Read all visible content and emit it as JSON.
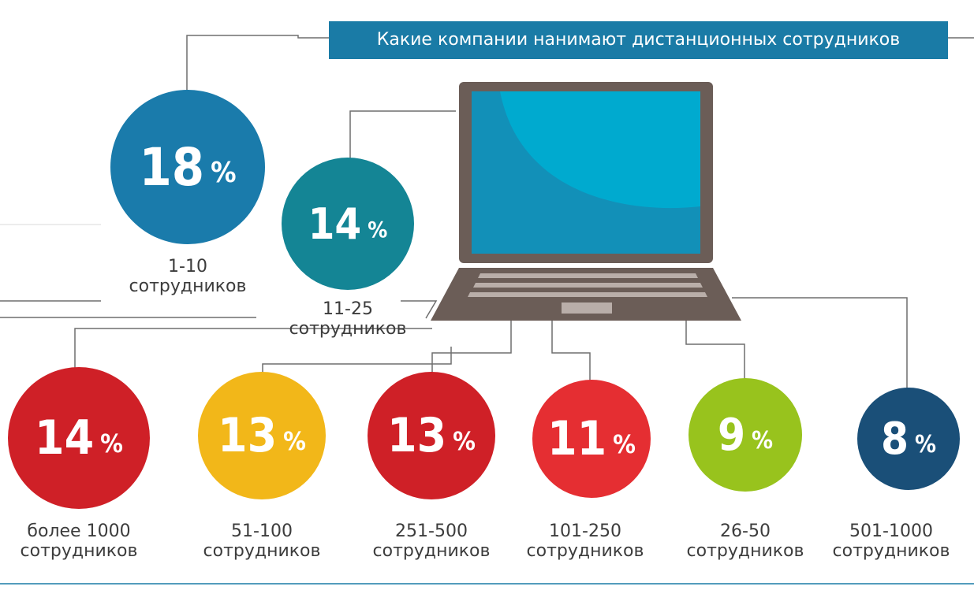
{
  "colors": {
    "title_bg": "#1a7ba6",
    "laptop_body": "#6b5d57",
    "screen_dark": "#1290b8",
    "screen_light": "#00aacf",
    "leader_lines": "#6f6f6f",
    "blue": "#1a7bab",
    "teal": "#148595",
    "red": "#cf2027",
    "yellow": "#f2b719",
    "red_light": "#e52e32",
    "green": "#98c31d",
    "navy": "#1a4f78"
  },
  "chart_data": {
    "type": "bubble",
    "title": "Какие компании нанимают дистанционных сотрудников",
    "unit": "%",
    "categories": [
      {
        "label_line1": "1-10",
        "label_line2": "сотрудников",
        "value": 18,
        "color": "#1a7bab"
      },
      {
        "label_line1": "11-25",
        "label_line2": "сотрудников",
        "value": 14,
        "color": "#148595"
      },
      {
        "label_line1": "более 1000",
        "label_line2": "сотрудников",
        "value": 14,
        "color": "#cf2027"
      },
      {
        "label_line1": "51-100",
        "label_line2": "сотрудников",
        "value": 13,
        "color": "#f2b719"
      },
      {
        "label_line1": "251-500",
        "label_line2": "сотрудников",
        "value": 13,
        "color": "#cf2027"
      },
      {
        "label_line1": "101-250",
        "label_line2": "сотрудников",
        "value": 11,
        "color": "#e52e32"
      },
      {
        "label_line1": "26-50",
        "label_line2": "сотрудников",
        "value": 9,
        "color": "#98c31d"
      },
      {
        "label_line1": "501-1000",
        "label_line2": "сотрудников",
        "value": 8,
        "color": "#1a4f78"
      }
    ]
  }
}
